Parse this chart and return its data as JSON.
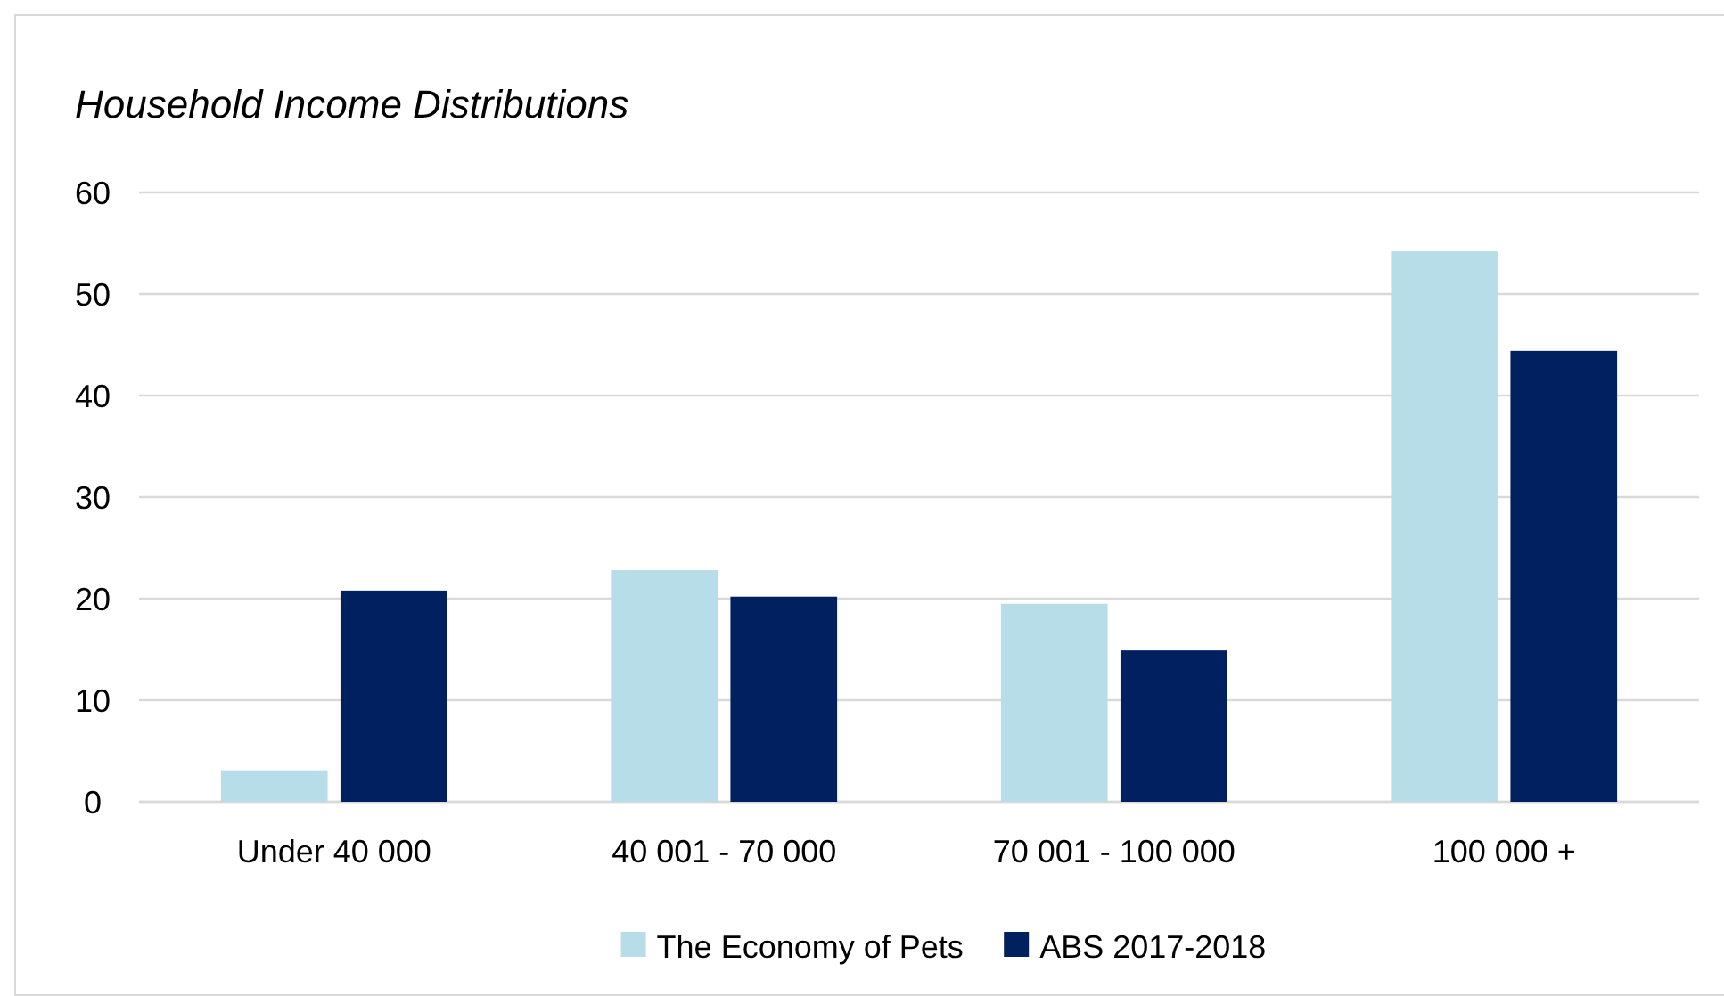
{
  "chart_data": {
    "type": "bar",
    "title": "Household Income Distributions",
    "categories": [
      "Under 40 000",
      "40 001 - 70 000",
      "70 001 - 100 000",
      "100 000 +"
    ],
    "series": [
      {
        "name": "The Economy of Pets",
        "color": "#b7dde8",
        "values": [
          3.1,
          22.8,
          19.5,
          54.2
        ]
      },
      {
        "name": "ABS 2017-2018",
        "color": "#002060",
        "values": [
          20.8,
          20.2,
          14.9,
          44.4
        ]
      }
    ],
    "ylim": [
      0,
      60
    ],
    "yticks": [
      0,
      10,
      20,
      30,
      40,
      50,
      60
    ],
    "grid": "y",
    "legend": "bottom"
  }
}
